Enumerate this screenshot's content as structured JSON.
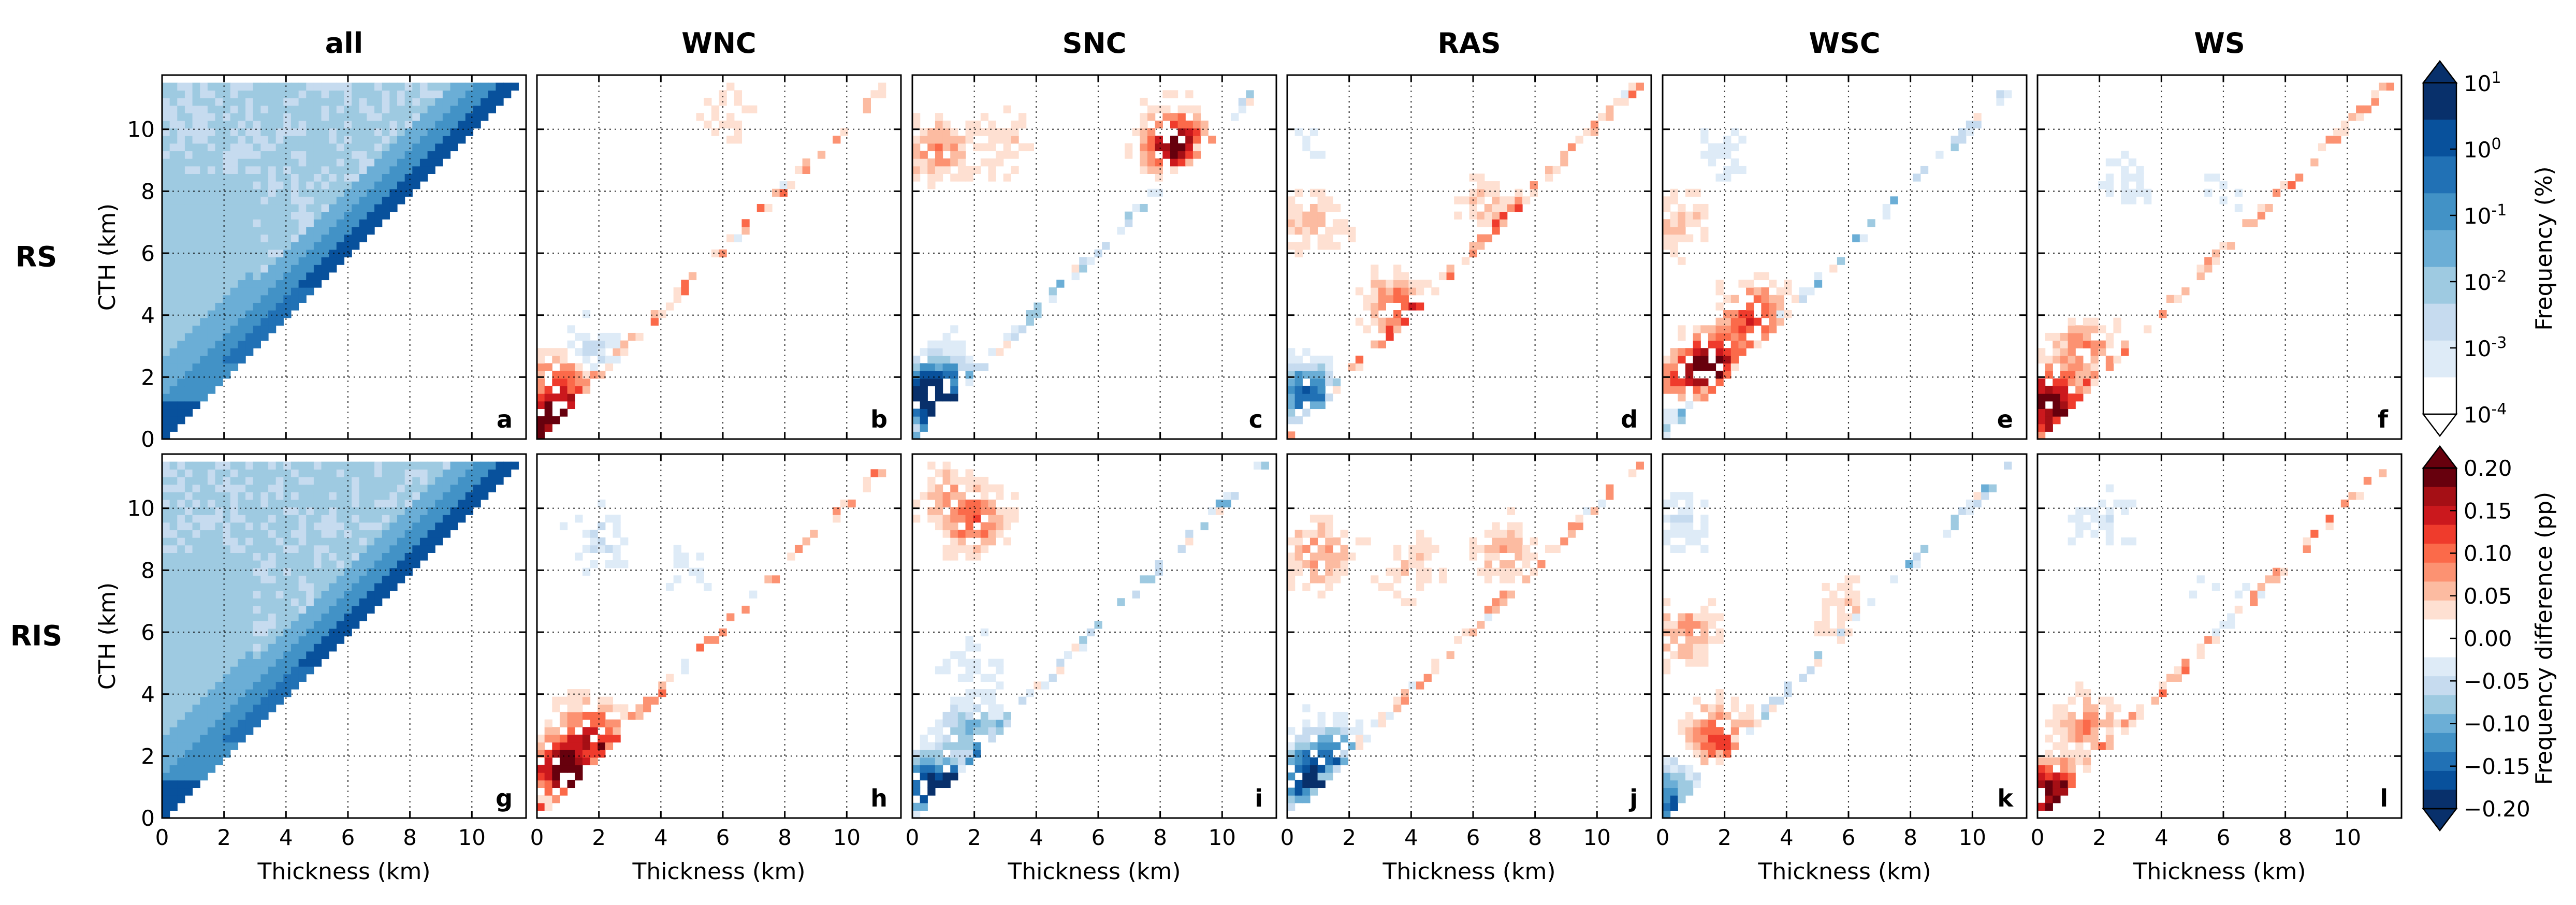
{
  "chart_data": {
    "type": "heatmap",
    "column_titles": [
      "all",
      "WNC",
      "SNC",
      "RAS",
      "WSC",
      "WS"
    ],
    "row_titles": [
      "RS",
      "RIS"
    ],
    "panel_letters": [
      [
        "a",
        "b",
        "c",
        "d",
        "e",
        "f"
      ],
      [
        "g",
        "h",
        "i",
        "j",
        "k",
        "l"
      ]
    ],
    "xlabel": "Thickness (km)",
    "ylabel": "CTH (km)",
    "xlim": [
      0,
      11.75
    ],
    "ylim": [
      0,
      11.75
    ],
    "x_ticks": [
      0,
      2,
      4,
      6,
      8,
      10
    ],
    "y_ticks": [
      0,
      2,
      4,
      6,
      8,
      10
    ],
    "grid": true,
    "colorbars": [
      {
        "label": "Frequency (%)",
        "scale": "log",
        "tick_labels": [
          "10^1",
          "10^0",
          "10^-1",
          "10^-2",
          "10^-3",
          "10^-4"
        ],
        "colors": [
          "#08306b",
          "#08519c",
          "#2171b5",
          "#4292c6",
          "#6baed6",
          "#9ecae1",
          "#c6dbef",
          "#deebf7",
          "#ffffff"
        ]
      },
      {
        "label": "Frequency difference (pp)",
        "scale": "linear",
        "tick_labels": [
          "0.20",
          "0.15",
          "0.10",
          "0.05",
          "0.00",
          "−0.05",
          "−0.10",
          "−0.15",
          "−0.20"
        ],
        "colors": [
          "#67000d",
          "#a50f15",
          "#cb181d",
          "#ef3b2c",
          "#fb6a4a",
          "#fc9272",
          "#fcbba1",
          "#fee0d2",
          "#ffffff",
          "#ffffff",
          "#deebf7",
          "#c6dbef",
          "#9ecae1",
          "#6baed6",
          "#4292c6",
          "#2171b5",
          "#08519c",
          "#08306b"
        ]
      }
    ],
    "panels": [
      {
        "id": "a",
        "class": "all",
        "regime": "RS",
        "kind": "frequency",
        "hotspots": []
      },
      {
        "id": "b",
        "class": "WNC",
        "regime": "RS",
        "kind": "difference",
        "hotspots": [
          {
            "x": 0.3,
            "y": 0.5,
            "v": 0.2
          },
          {
            "x": 1.0,
            "y": 2.0,
            "v": 0.14
          },
          {
            "x": 1.6,
            "y": 2.6,
            "v": -0.09
          },
          {
            "x": 6.0,
            "y": 10.5,
            "v": 0.03
          }
        ]
      },
      {
        "id": "c",
        "class": "SNC",
        "regime": "RS",
        "kind": "difference",
        "hotspots": [
          {
            "x": 0.8,
            "y": 9.3,
            "v": 0.08
          },
          {
            "x": 3.0,
            "y": 9.6,
            "v": 0.04
          },
          {
            "x": 8.5,
            "y": 9.5,
            "v": 0.2
          },
          {
            "x": 0.4,
            "y": 1.4,
            "v": -0.2
          },
          {
            "x": 1.2,
            "y": 2.0,
            "v": -0.08
          }
        ]
      },
      {
        "id": "d",
        "class": "RAS",
        "regime": "RS",
        "kind": "difference",
        "hotspots": [
          {
            "x": 0.8,
            "y": 7.0,
            "v": 0.05
          },
          {
            "x": 0.6,
            "y": 1.5,
            "v": -0.16
          },
          {
            "x": 3.5,
            "y": 4.3,
            "v": 0.1
          },
          {
            "x": 6.5,
            "y": 7.5,
            "v": 0.05
          },
          {
            "x": 0.8,
            "y": 9.5,
            "v": -0.02
          }
        ]
      },
      {
        "id": "e",
        "class": "WSC",
        "regime": "RS",
        "kind": "difference",
        "hotspots": [
          {
            "x": 1.6,
            "y": 2.4,
            "v": 0.2
          },
          {
            "x": 0.6,
            "y": 1.6,
            "v": 0.14
          },
          {
            "x": 3.0,
            "y": 4.0,
            "v": 0.13
          },
          {
            "x": 0.5,
            "y": 7.0,
            "v": 0.05
          },
          {
            "x": 0.6,
            "y": 1.0,
            "v": -0.12
          },
          {
            "x": 2.0,
            "y": 9.0,
            "v": -0.03
          }
        ]
      },
      {
        "id": "f",
        "class": "WS",
        "regime": "RS",
        "kind": "difference",
        "hotspots": [
          {
            "x": 0.4,
            "y": 1.2,
            "v": 0.2
          },
          {
            "x": 1.5,
            "y": 3.0,
            "v": 0.08
          },
          {
            "x": 3.0,
            "y": 8.5,
            "v": -0.03
          },
          {
            "x": 6.0,
            "y": 8.0,
            "v": -0.02
          }
        ]
      },
      {
        "id": "g",
        "class": "all",
        "regime": "RIS",
        "kind": "frequency",
        "hotspots": []
      },
      {
        "id": "h",
        "class": "WNC",
        "regime": "RIS",
        "kind": "difference",
        "hotspots": [
          {
            "x": 0.8,
            "y": 1.6,
            "v": 0.2
          },
          {
            "x": 1.8,
            "y": 2.8,
            "v": 0.12
          },
          {
            "x": 2.0,
            "y": 9.0,
            "v": -0.04
          },
          {
            "x": 5.0,
            "y": 8.0,
            "v": -0.02
          }
        ]
      },
      {
        "id": "i",
        "class": "SNC",
        "regime": "RIS",
        "kind": "difference",
        "hotspots": [
          {
            "x": 2.0,
            "y": 9.6,
            "v": 0.1
          },
          {
            "x": 1.0,
            "y": 10.6,
            "v": 0.05
          },
          {
            "x": 0.6,
            "y": 1.0,
            "v": -0.2
          },
          {
            "x": 2.0,
            "y": 2.8,
            "v": -0.1
          },
          {
            "x": 2.0,
            "y": 5.0,
            "v": -0.03
          }
        ]
      },
      {
        "id": "j",
        "class": "RAS",
        "regime": "RIS",
        "kind": "difference",
        "hotspots": [
          {
            "x": 1.0,
            "y": 8.6,
            "v": 0.08
          },
          {
            "x": 4.0,
            "y": 8.0,
            "v": 0.05
          },
          {
            "x": 7.0,
            "y": 8.5,
            "v": 0.06
          },
          {
            "x": 0.6,
            "y": 1.2,
            "v": -0.18
          },
          {
            "x": 1.5,
            "y": 2.2,
            "v": -0.1
          }
        ]
      },
      {
        "id": "k",
        "class": "WSC",
        "regime": "RIS",
        "kind": "difference",
        "hotspots": [
          {
            "x": 0.8,
            "y": 6.0,
            "v": 0.07
          },
          {
            "x": 1.8,
            "y": 2.6,
            "v": 0.12
          },
          {
            "x": 0.5,
            "y": 9.5,
            "v": -0.04
          },
          {
            "x": 6.0,
            "y": 6.5,
            "v": 0.05
          },
          {
            "x": 0.3,
            "y": 0.8,
            "v": -0.12
          }
        ]
      },
      {
        "id": "l",
        "class": "WS",
        "regime": "RIS",
        "kind": "difference",
        "hotspots": [
          {
            "x": 0.3,
            "y": 0.8,
            "v": 0.2
          },
          {
            "x": 1.6,
            "y": 3.0,
            "v": 0.08
          },
          {
            "x": 2.0,
            "y": 9.5,
            "v": -0.04
          },
          {
            "x": 6.0,
            "y": 7.0,
            "v": -0.02
          }
        ]
      }
    ]
  }
}
